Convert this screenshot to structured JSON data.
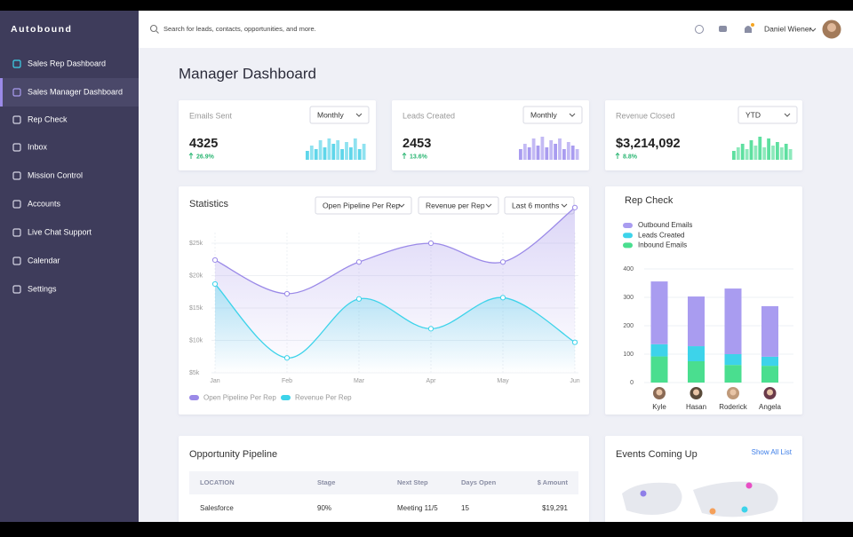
{
  "brand": "Autobound",
  "nav": [
    {
      "label": "Sales Rep Dashboard",
      "active": false
    },
    {
      "label": "Sales Manager Dashboard",
      "active": true
    },
    {
      "label": "Rep Check",
      "active": false
    },
    {
      "label": "Inbox",
      "active": false
    },
    {
      "label": "Mission Control",
      "active": false
    },
    {
      "label": "Accounts",
      "active": false
    },
    {
      "label": "Live Chat Support",
      "active": false
    },
    {
      "label": "Calendar",
      "active": false
    },
    {
      "label": "Settings",
      "active": false
    }
  ],
  "search_placeholder": "Search for leads, contacts, opportunities, and more.",
  "user": "Daniel Wiener",
  "page_title": "Manager Dashboard",
  "kpis": [
    {
      "label": "Emails Sent",
      "period": "Monthly",
      "value": "4325",
      "change": "26.9%",
      "color": "#5fd6ea",
      "bars": [
        5,
        8,
        6,
        11,
        7,
        12,
        9,
        11,
        6,
        10,
        7,
        12,
        6,
        9
      ]
    },
    {
      "label": "Leads Created",
      "period": "Monthly",
      "value": "2453",
      "change": "13.6%",
      "color": "#a99cf0",
      "bars": [
        6,
        9,
        7,
        12,
        8,
        13,
        7,
        11,
        9,
        12,
        6,
        10,
        8,
        6
      ]
    },
    {
      "label": "Revenue Closed",
      "period": "YTD",
      "value": "$3,214,092",
      "change": "8.8%",
      "color": "#5ee0a0",
      "bars": [
        5,
        7,
        9,
        6,
        11,
        8,
        13,
        7,
        12,
        8,
        10,
        7,
        9,
        6
      ]
    }
  ],
  "statistics": {
    "title": "Statistics",
    "filters": [
      "Open Pipeline Per Rep",
      "Revenue per Rep",
      "Last 6 months"
    ],
    "chart_data": {
      "type": "line",
      "categories": [
        "Jan",
        "Feb",
        "Mar",
        "Apr",
        "May",
        "Jun"
      ],
      "series": [
        {
          "name": "Open Pipeline Per Rep",
          "color": "#9b8ae8",
          "values": [
            22400,
            17200,
            22100,
            25000,
            22100,
            30500
          ]
        },
        {
          "name": "Revenue Per Rep",
          "color": "#3dd3ea",
          "values": [
            18700,
            7300,
            16400,
            11800,
            16600,
            9700
          ]
        }
      ],
      "ylim": [
        5000,
        31000
      ],
      "yticks": [
        {
          "value": 5000,
          "label": "$5k"
        },
        {
          "value": 10000,
          "label": "$10k"
        },
        {
          "value": 15000,
          "label": "$15k"
        },
        {
          "value": 20000,
          "label": "$20k"
        },
        {
          "value": 25000,
          "label": "$25k"
        }
      ],
      "grid": true
    }
  },
  "rep_check": {
    "title": "Rep Check",
    "chart_data": {
      "type": "stacked_bar",
      "categories": [
        "Kyle",
        "Hasan",
        "Roderick",
        "Angela"
      ],
      "series": [
        {
          "name": "Outbound Emails",
          "color": "#a99cf0",
          "values": [
            221,
            175,
            231,
            178
          ]
        },
        {
          "name": "Leads Created",
          "color": "#3dd3ea",
          "values": [
            43,
            53,
            38,
            32
          ]
        },
        {
          "name": "Inbound Emails",
          "color": "#4ade8f",
          "values": [
            92,
            75,
            62,
            59
          ]
        }
      ],
      "ylim": [
        0,
        400
      ],
      "yticks": [
        0,
        100,
        200,
        300,
        400
      ],
      "grid": true
    }
  },
  "pipeline": {
    "title": "Opportunity Pipeline",
    "columns": [
      "LOCATION",
      "Stage",
      "Next Step",
      "Days Open",
      "$ Amount"
    ],
    "rows": [
      [
        "Salesforce",
        "90%",
        "Meeting 11/5",
        "15",
        "$19,291"
      ]
    ]
  },
  "events": {
    "title": "Events Coming Up",
    "link": "Show All List"
  }
}
